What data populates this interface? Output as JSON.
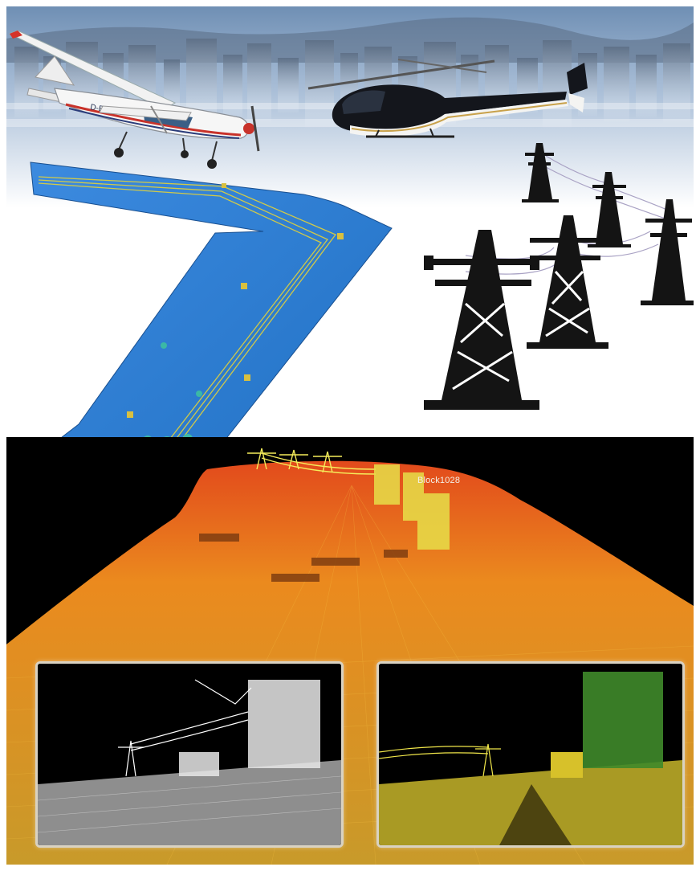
{
  "scene": {
    "aircraft_registration": "D-EBMW",
    "point_cloud_label": "Block1028"
  },
  "colors": {
    "sky_top": "#6f8fb4",
    "sky_bottom": "#ffffff",
    "model_blue": "#2f7ed8",
    "ground_orange": "#e79a1f",
    "ground_red": "#e24a1c",
    "inset_border": "#d9d2c2"
  },
  "icons": [
    "airplane-icon",
    "helicopter-icon",
    "power-tower-icon"
  ]
}
